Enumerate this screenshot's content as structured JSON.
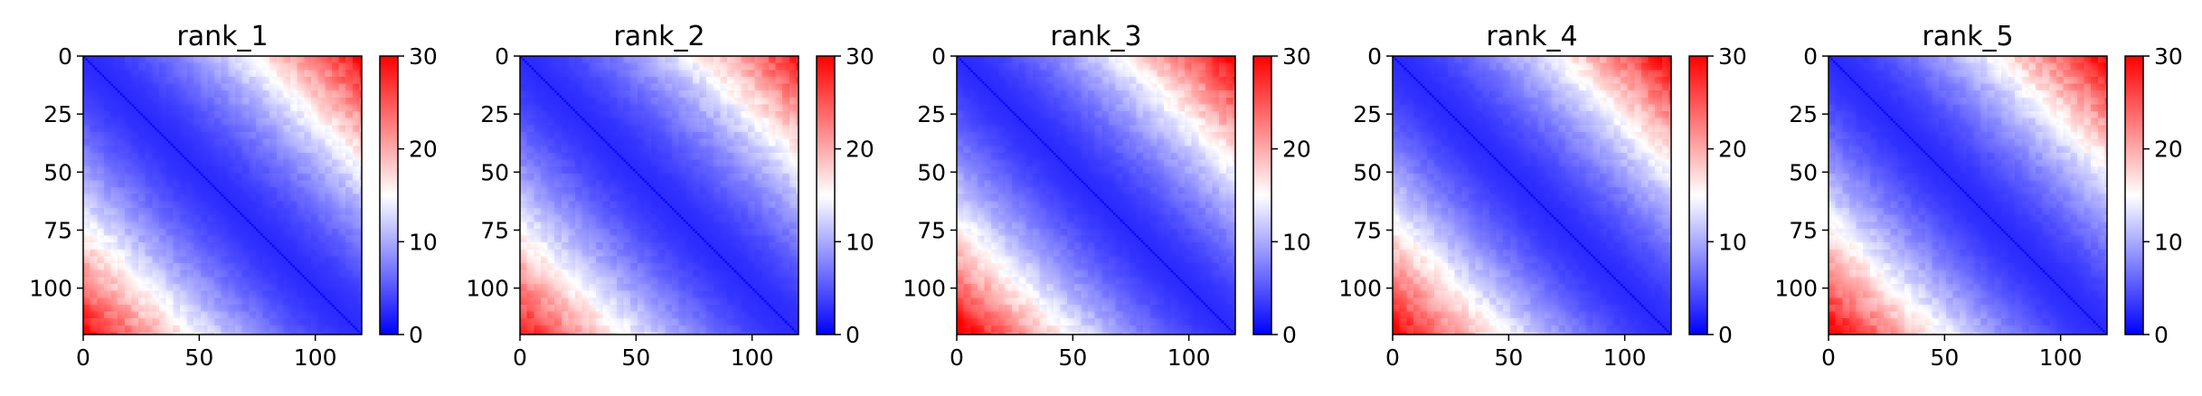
{
  "figure": {
    "background": "#ffffff"
  },
  "chart_data": [
    {
      "type": "heatmap",
      "title": "rank_1",
      "size": 121,
      "cmap": "bwr",
      "vmin": 0,
      "vmax": 30,
      "xticks": [
        0,
        50,
        100
      ],
      "yticks": [
        0,
        25,
        50,
        75,
        100
      ],
      "cbar_ticks": [
        0,
        10,
        20,
        30
      ],
      "description": "PAE-style matrix: low (blue) near diagonal, rising to red at far off-diagonal corners",
      "corner_max": 30
    },
    {
      "type": "heatmap",
      "title": "rank_2",
      "size": 121,
      "cmap": "bwr",
      "vmin": 0,
      "vmax": 30,
      "xticks": [
        0,
        50,
        100
      ],
      "yticks": [
        0,
        25,
        50,
        75,
        100
      ],
      "cbar_ticks": [
        0,
        10,
        20,
        30
      ],
      "description": "PAE-style matrix: low (blue) near diagonal, rising to red at far off-diagonal corners",
      "corner_max": 29
    },
    {
      "type": "heatmap",
      "title": "rank_3",
      "size": 121,
      "cmap": "bwr",
      "vmin": 0,
      "vmax": 30,
      "xticks": [
        0,
        50,
        100
      ],
      "yticks": [
        0,
        25,
        50,
        75,
        100
      ],
      "cbar_ticks": [
        0,
        10,
        20,
        30
      ],
      "description": "PAE-style matrix: low (blue) near diagonal, rising to red at far off-diagonal corners",
      "corner_max": 31
    },
    {
      "type": "heatmap",
      "title": "rank_4",
      "size": 121,
      "cmap": "bwr",
      "vmin": 0,
      "vmax": 30,
      "xticks": [
        0,
        50,
        100
      ],
      "yticks": [
        0,
        25,
        50,
        75,
        100
      ],
      "cbar_ticks": [
        0,
        10,
        20,
        30
      ],
      "description": "PAE-style matrix: low (blue) near diagonal, rising to red at far off-diagonal corners",
      "corner_max": 31
    },
    {
      "type": "heatmap",
      "title": "rank_5",
      "size": 121,
      "cmap": "bwr",
      "vmin": 0,
      "vmax": 30,
      "xticks": [
        0,
        50,
        100
      ],
      "yticks": [
        0,
        25,
        50,
        75,
        100
      ],
      "cbar_ticks": [
        0,
        10,
        20,
        30
      ],
      "description": "PAE-style matrix: low (blue) near diagonal, rising to red at far off-diagonal corners",
      "corner_max": 31
    }
  ]
}
